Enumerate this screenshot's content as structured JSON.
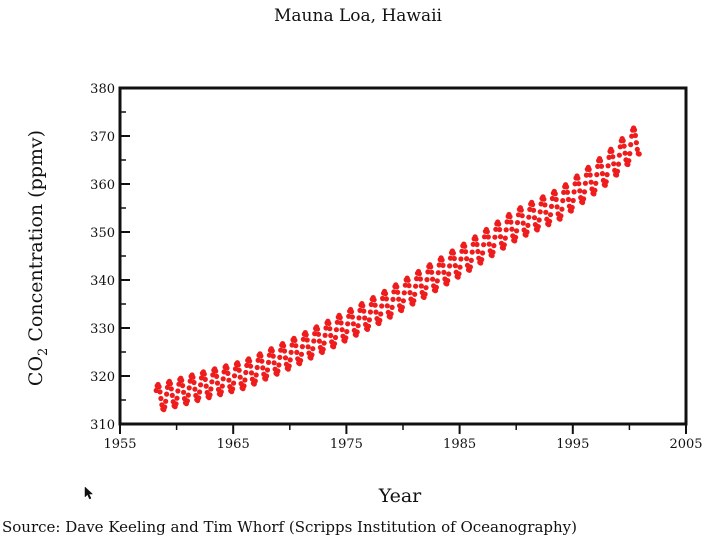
{
  "chart_data": {
    "type": "scatter",
    "title": "Mauna Loa, Hawaii",
    "xlabel": "Year",
    "ylabel": "CO2 Concentration (ppmv)",
    "ylabel_main": "CO",
    "ylabel_sub": "2",
    "ylabel_rest": " Concentration (ppmv)",
    "xlim": [
      1955,
      2005
    ],
    "ylim": [
      310,
      380
    ],
    "xticks": [
      1955,
      1965,
      1975,
      1985,
      1995,
      2005
    ],
    "yticks": [
      310,
      320,
      330,
      340,
      350,
      360,
      370,
      380
    ],
    "x_start": 1958.2,
    "x_end": 2000.9,
    "trend_points": [
      [
        1958,
        315.2
      ],
      [
        1962,
        317.8
      ],
      [
        1966,
        320.3
      ],
      [
        1970,
        324.5
      ],
      [
        1974,
        329.2
      ],
      [
        1978,
        334.1
      ],
      [
        1982,
        339.6
      ],
      [
        1986,
        345.3
      ],
      [
        1990,
        351.5
      ],
      [
        1994,
        356.0
      ],
      [
        1998,
        363.2
      ],
      [
        2001,
        369.8
      ]
    ],
    "seasonal_amplitude": 2.8,
    "marker_color": "#ee1c1c",
    "source": "Source: Dave Keeling and Tim Whorf (Scripps Institution of Oceanography)"
  },
  "icons": {
    "cursor": "mouse-pointer-icon"
  }
}
